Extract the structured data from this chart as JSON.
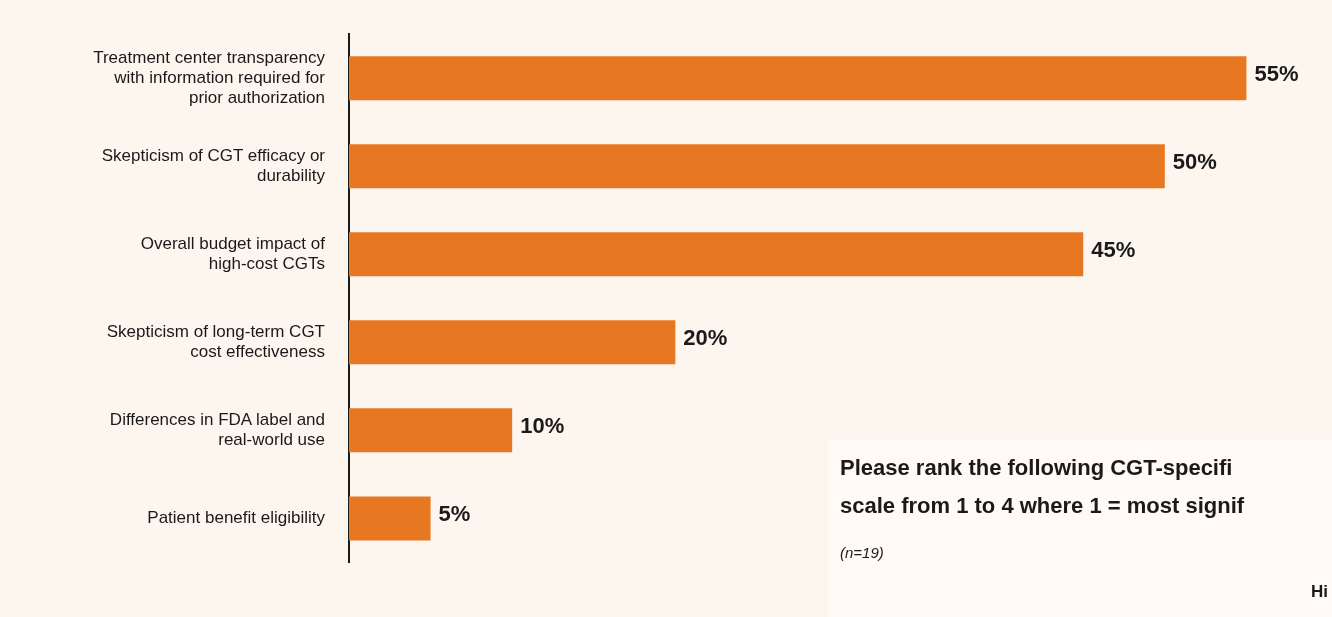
{
  "chart_data": {
    "type": "bar",
    "orientation": "horizontal",
    "categories": [
      "Treatment center transparency with information required for prior authorization",
      "Skepticism of CGT efficacy or durability",
      "Overall budget impact of high-cost CGTs",
      "Skepticism of long-term CGT cost effectiveness",
      "Differences in FDA label and real-world use",
      "Patient benefit eligibility"
    ],
    "values": [
      55,
      50,
      45,
      20,
      10,
      5
    ],
    "value_labels": [
      "55%",
      "50%",
      "45%",
      "20%",
      "10%",
      "5%"
    ],
    "color": "#e87722",
    "tick_labels": "y",
    "grid": false,
    "legend": false,
    "annotations": [
      "Please rank the following CGT-specifi",
      "scale from 1 to 4 where 1 = most signif",
      "(n=19)",
      "Hi"
    ]
  }
}
